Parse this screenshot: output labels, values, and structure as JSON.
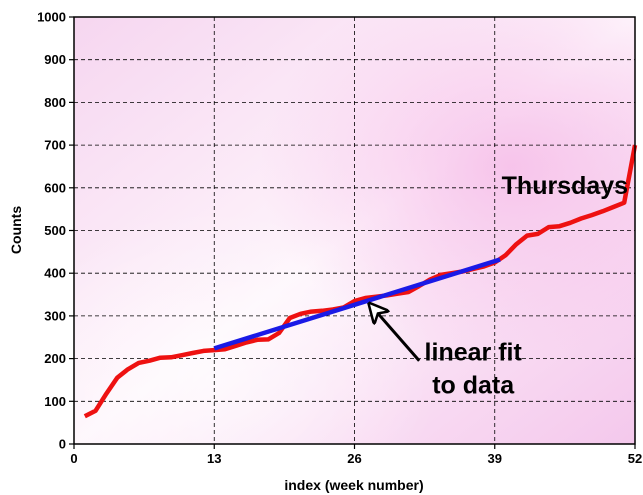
{
  "chart_data": {
    "type": "line",
    "xlabel": "index (week number)",
    "ylabel": "Counts",
    "xlim": [
      0,
      52
    ],
    "ylim": [
      0,
      1000
    ],
    "xticks": [
      0,
      13,
      26,
      39,
      52
    ],
    "yticks": [
      0,
      100,
      200,
      300,
      400,
      500,
      600,
      700,
      800,
      900,
      1000
    ],
    "grid": true,
    "series": [
      {
        "color": "#ee1111",
        "x": [
          1,
          2,
          3,
          4,
          5,
          6,
          7,
          8,
          9,
          10,
          11,
          12,
          13,
          14,
          15,
          16,
          17,
          18,
          19,
          20,
          21,
          22,
          23,
          24,
          25,
          26,
          27,
          28,
          29,
          30,
          31,
          32,
          33,
          34,
          35,
          36,
          37,
          38,
          39,
          40,
          41,
          42,
          43,
          44,
          45,
          46,
          47,
          48,
          49,
          50,
          51,
          52
        ],
        "y": [
          65,
          78,
          118,
          155,
          175,
          190,
          195,
          202,
          203,
          208,
          213,
          218,
          220,
          222,
          230,
          238,
          244,
          245,
          260,
          295,
          305,
          310,
          312,
          315,
          320,
          335,
          342,
          345,
          348,
          352,
          356,
          370,
          385,
          396,
          400,
          404,
          410,
          416,
          425,
          442,
          468,
          488,
          492,
          508,
          510,
          518,
          528,
          536,
          545,
          555,
          565,
          700
        ]
      },
      {
        "name": "linear fit",
        "color": "#1a1ae6",
        "x": [
          13,
          39.5
        ],
        "y": [
          224,
          432
        ]
      }
    ],
    "annotations": [
      {
        "text": "Thursdays",
        "x": 45.5,
        "y": 585
      },
      {
        "text": "linear fit",
        "x": 37,
        "y": 195
      },
      {
        "text": "to data",
        "x": 37,
        "y": 118
      }
    ],
    "arrow": {
      "from": [
        32,
        195
      ],
      "to": [
        27.4,
        328
      ]
    },
    "background": {
      "base": "#fbe8f6",
      "highlight": "#f8c0ec",
      "light": "#fdf3fb"
    }
  }
}
